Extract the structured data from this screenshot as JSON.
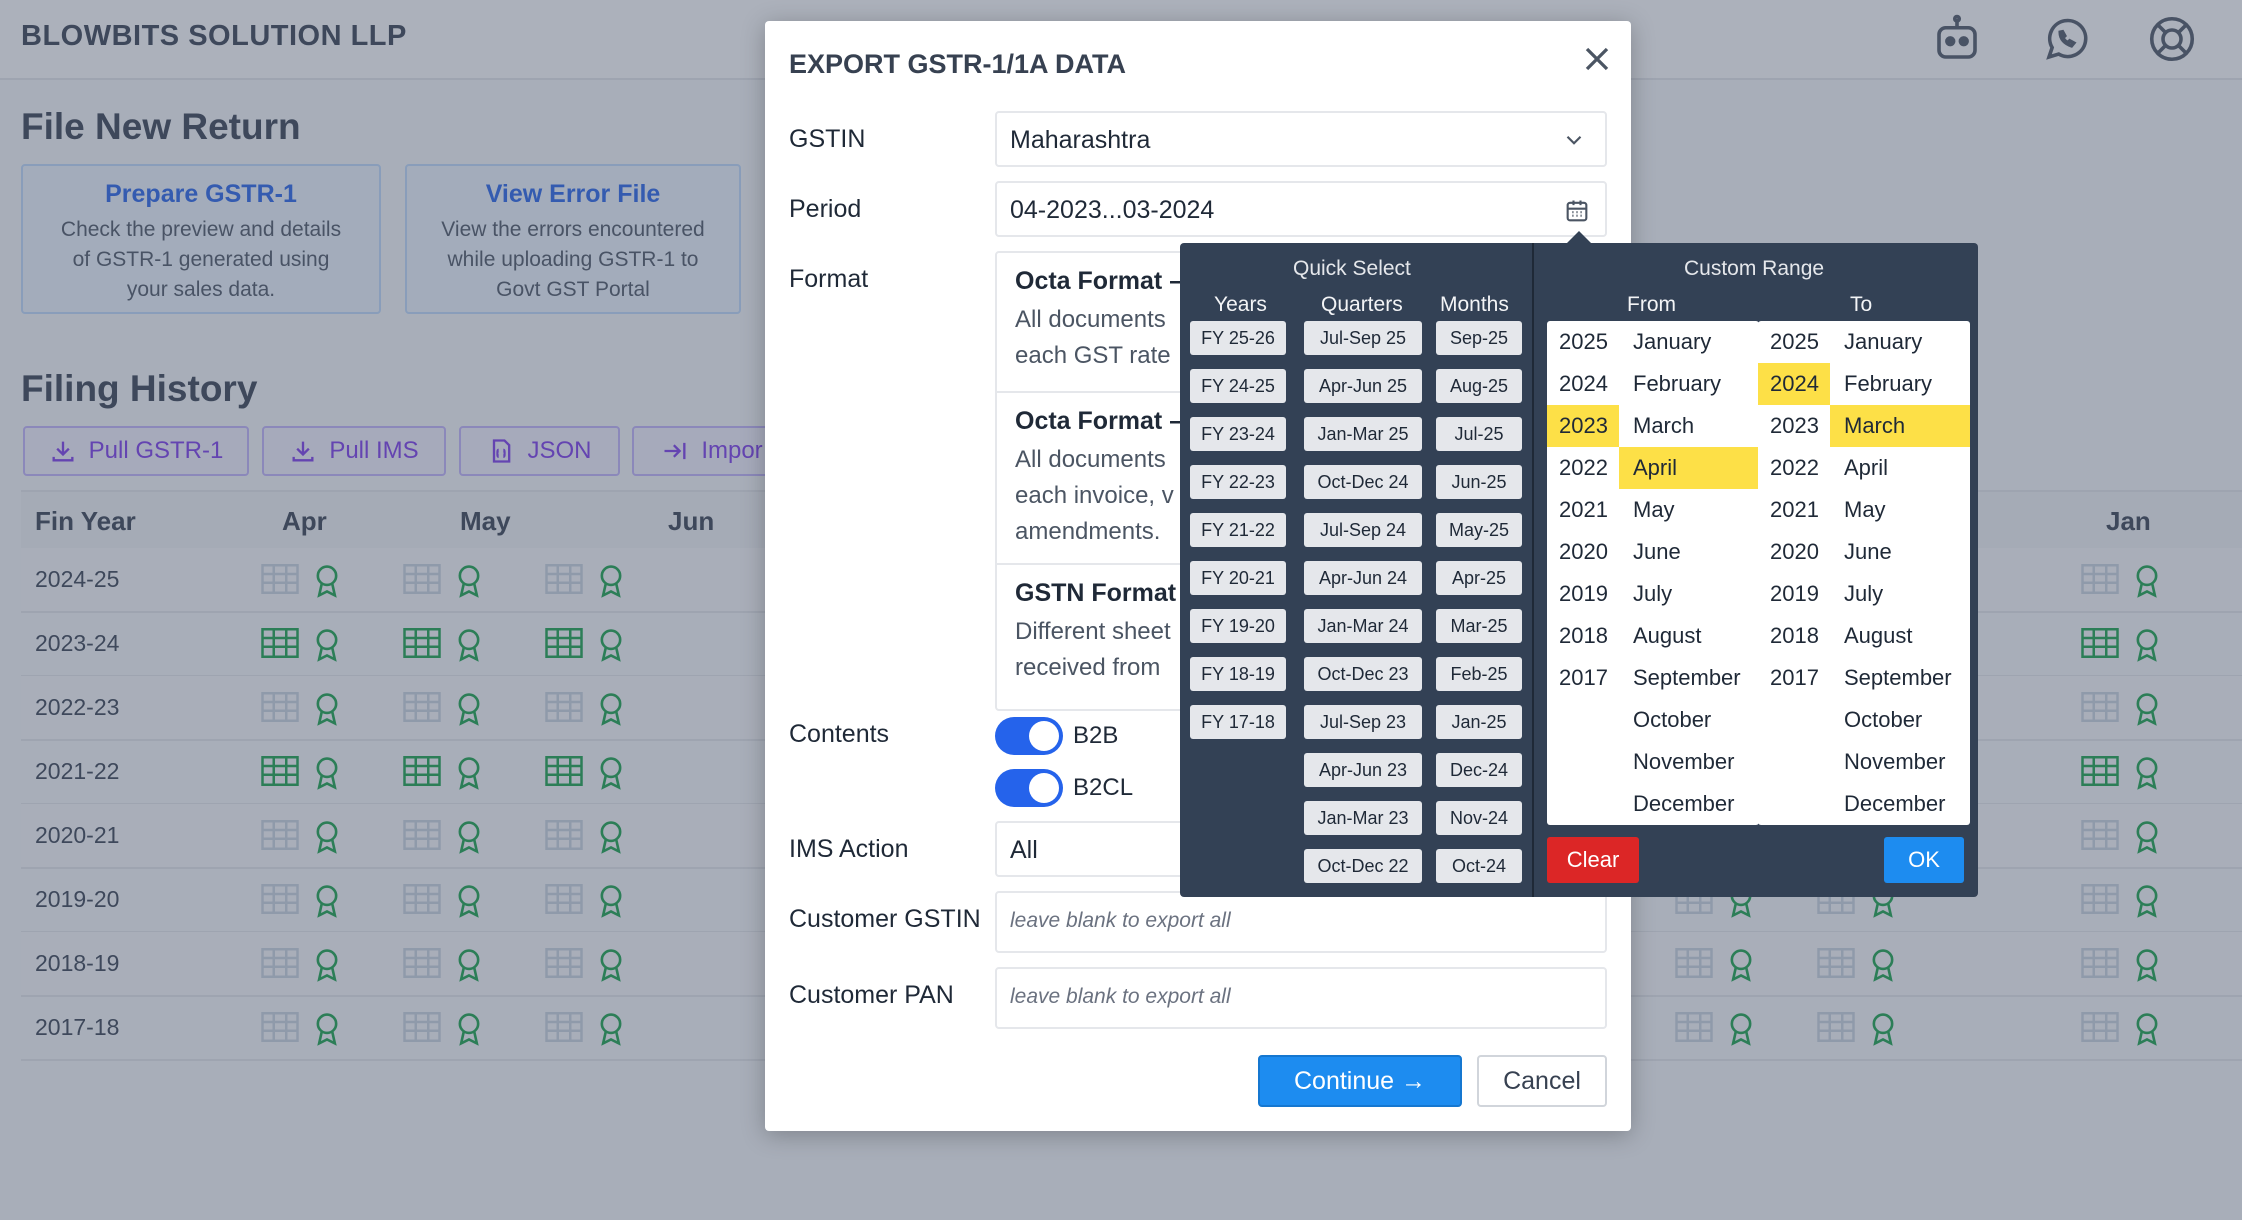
{
  "app": {
    "company": "BLOWBITS SOLUTION LLP",
    "section_file": "File New Return",
    "section_history": "Filing History"
  },
  "cards": [
    {
      "title": "Prepare GSTR-1",
      "desc": [
        "Check the preview and details",
        "of GSTR-1 generated using",
        "your sales data."
      ]
    },
    {
      "title": "View Error File",
      "desc": [
        "View the errors encountered",
        "while uploading GSTR-1 to",
        "Govt GST Portal"
      ]
    }
  ],
  "actions": [
    "Pull GSTR-1",
    "Pull IMS",
    "JSON",
    "Impor"
  ],
  "history": {
    "headers": {
      "fin_year": "Fin Year",
      "apr": "Apr",
      "may": "May",
      "jun": "Jun",
      "jan": "Jan"
    },
    "rows": [
      {
        "fy": "2024-25",
        "filed": false
      },
      {
        "fy": "2023-24",
        "filed": true
      },
      {
        "fy": "2022-23",
        "filed": false
      },
      {
        "fy": "2021-22",
        "filed": true
      },
      {
        "fy": "2020-21",
        "filed": false
      },
      {
        "fy": "2019-20",
        "filed": false
      },
      {
        "fy": "2018-19",
        "filed": false
      },
      {
        "fy": "2017-18",
        "filed": false
      }
    ]
  },
  "modal": {
    "title": "EXPORT GSTR-1/1A DATA",
    "gstin_label": "GSTIN",
    "gstin_value": "Maharashtra",
    "period_label": "Period",
    "period_value": "04-2023...03-2024",
    "format_label": "Format",
    "formats": [
      {
        "title": "Octa Format –",
        "desc": [
          "All documents",
          "each GST rate"
        ]
      },
      {
        "title": "Octa Format –",
        "desc": [
          "All documents",
          "each invoice, v",
          "amendments."
        ]
      },
      {
        "title": "GSTN Format",
        "desc": [
          "Different sheet",
          "received from"
        ]
      }
    ],
    "contents_label": "Contents",
    "contents": [
      "B2B",
      "B2CL"
    ],
    "ims_label": "IMS Action",
    "ims_value": "All",
    "customer_gstin_label": "Customer GSTIN",
    "customer_gstin_placeholder": "leave blank to export all",
    "customer_pan_label": "Customer PAN",
    "customer_pan_placeholder": "leave blank to export all",
    "continue": "Continue →",
    "cancel": "Cancel"
  },
  "period_picker": {
    "quick_select": "Quick Select",
    "custom_range": "Custom Range",
    "col_years": "Years",
    "col_quarters": "Quarters",
    "col_months": "Months",
    "col_from": "From",
    "col_to": "To",
    "years": [
      "FY 25-26",
      "FY 24-25",
      "FY 23-24",
      "FY 22-23",
      "FY 21-22",
      "FY 20-21",
      "FY 19-20",
      "FY 18-19",
      "FY 17-18"
    ],
    "quarters": [
      "Jul-Sep 25",
      "Apr-Jun 25",
      "Jan-Mar 25",
      "Oct-Dec 24",
      "Jul-Sep 24",
      "Apr-Jun 24",
      "Jan-Mar 24",
      "Oct-Dec 23",
      "Jul-Sep 23",
      "Apr-Jun 23",
      "Jan-Mar 23",
      "Oct-Dec 22"
    ],
    "months_quick": [
      "Sep-25",
      "Aug-25",
      "Jul-25",
      "Jun-25",
      "May-25",
      "Apr-25",
      "Mar-25",
      "Feb-25",
      "Jan-25",
      "Dec-24",
      "Nov-24",
      "Oct-24"
    ],
    "range_years": [
      "2025",
      "2024",
      "2023",
      "2022",
      "2021",
      "2020",
      "2019",
      "2018",
      "2017"
    ],
    "range_months": [
      "January",
      "February",
      "March",
      "April",
      "May",
      "June",
      "July",
      "August",
      "September",
      "October",
      "November",
      "December"
    ],
    "from_selected_year": "2023",
    "from_selected_month": "April",
    "to_selected_year": "2024",
    "to_selected_month": "March",
    "clear": "Clear",
    "ok": "OK"
  },
  "colors": {
    "accent": "#1d8cf0",
    "selected": "#fde047",
    "popup_bg": "#334155",
    "filed_green": "#16a34a",
    "clear_red": "#dc2626"
  },
  "icons": [
    "bot-icon",
    "whatsapp-icon",
    "support-icon",
    "close-icon",
    "chevron-down-icon",
    "calendar-icon",
    "download-icon",
    "json-file-icon",
    "import-icon",
    "table-icon",
    "ribbon-icon"
  ]
}
